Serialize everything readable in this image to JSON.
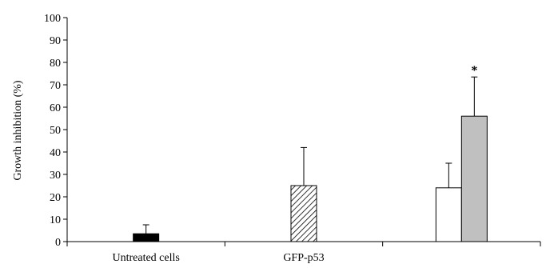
{
  "chart_data": {
    "type": "bar",
    "title": "",
    "xlabel": "",
    "ylabel": "Growth inhibition (%)",
    "ylim": [
      0,
      100
    ],
    "yticks": [
      0,
      10,
      20,
      30,
      40,
      50,
      60,
      70,
      80,
      90,
      100
    ],
    "categories": [
      "Untreated cells",
      "GFP-p53",
      ""
    ],
    "bars": [
      {
        "category": 0,
        "value": 3.5,
        "error": 4,
        "fill": "#000000",
        "pattern": "solid"
      },
      {
        "category": 1,
        "value": 25,
        "error": 17,
        "fill": "#ffffff",
        "pattern": "hatch"
      },
      {
        "category": 2,
        "value": 24,
        "error": 11,
        "fill": "#ffffff",
        "pattern": "solid"
      },
      {
        "category": 2,
        "value": 56,
        "error": 17.5,
        "fill": "#c0c0c0",
        "pattern": "solid"
      }
    ],
    "annotations": [
      {
        "bar": 3,
        "text": "*"
      }
    ],
    "grid": false,
    "legend": "none"
  }
}
